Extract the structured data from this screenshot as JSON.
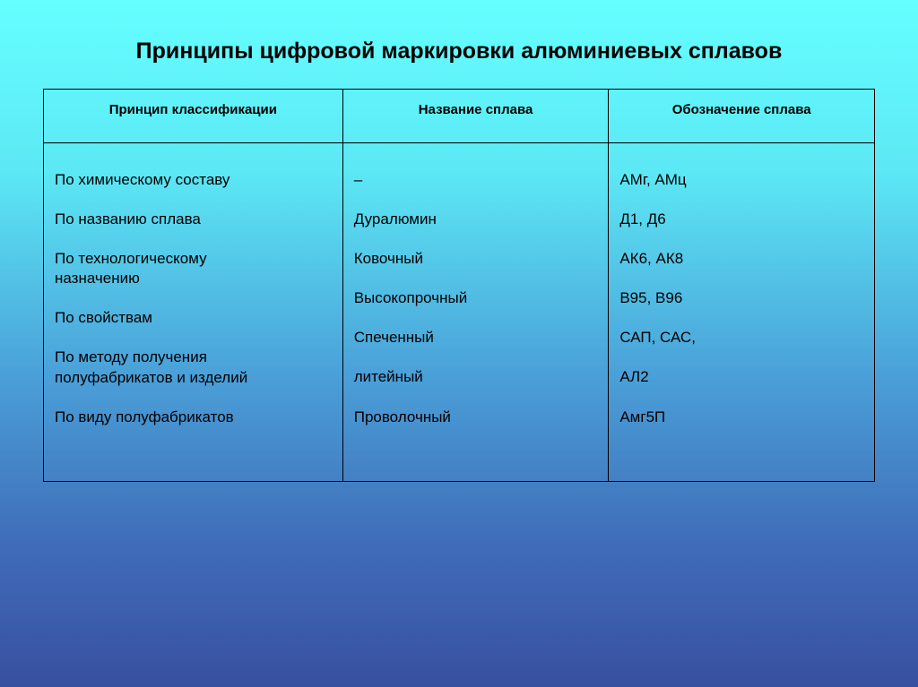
{
  "title": "Принципы цифровой маркировки алюминиевых сплавов",
  "table": {
    "headers": {
      "col1": "Принцип классификации",
      "col2": "Название сплава",
      "col3": "Обозначение сплава"
    },
    "col1": {
      "r0": "По химическому составу",
      "r1": "По названию сплава",
      "r2a": "По технологическому",
      "r2b": "назначению",
      "r3": "По свойствам",
      "r4a": "По методу получения",
      "r4b": "полуфабрикатов и изделий",
      "r5": "По виду полуфабрикатов"
    },
    "col2": {
      "r0": "–",
      "r1": "Дуралюмин",
      "r2": "Ковочный",
      "r3": "Высокопрочный",
      "r4": "Спеченный",
      "r5": "литейный",
      "r6": "Проволочный"
    },
    "col3": {
      "r0": "АМг, АМц",
      "r1": "Д1, Д6",
      "r2": "АК6, АК8",
      "r3": "В95, В96",
      "r4": "САП, САС,",
      "r5": "АЛ2",
      "r6": "Амг5П"
    }
  }
}
